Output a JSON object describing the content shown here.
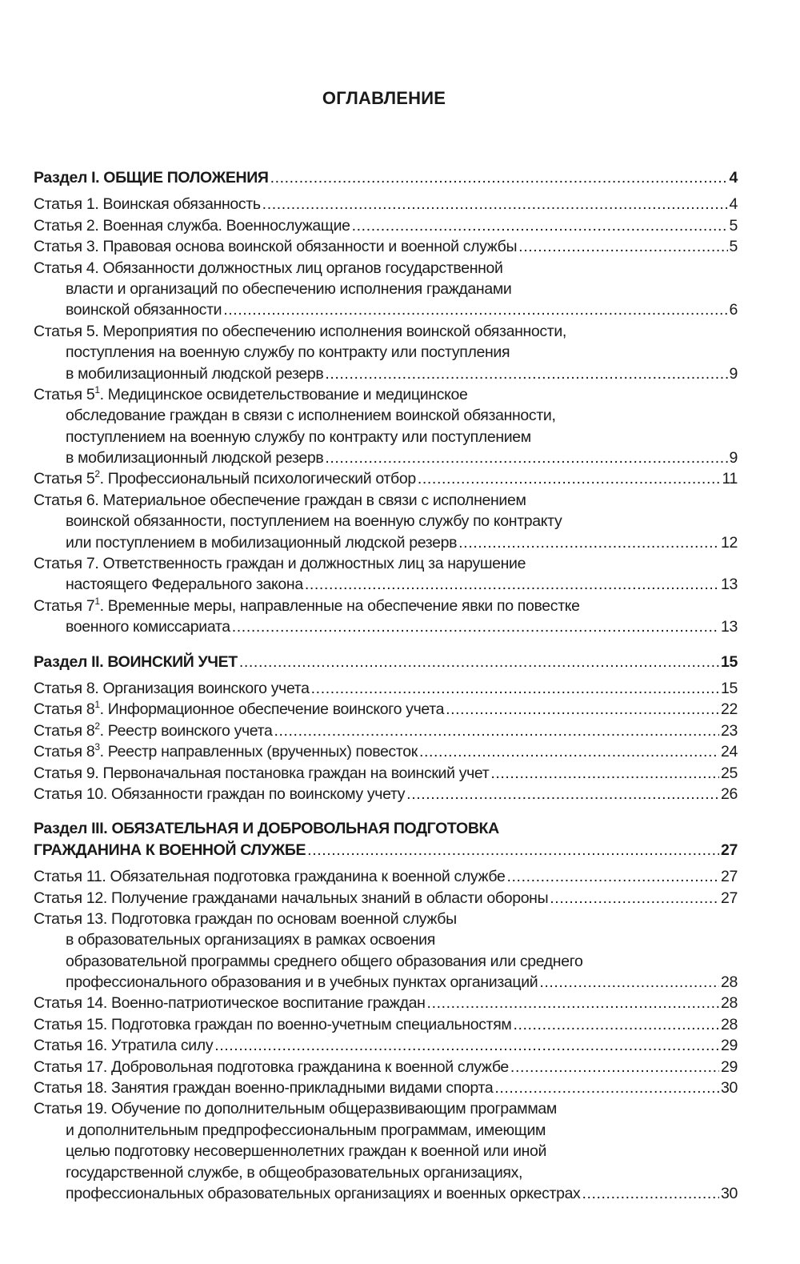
{
  "title": "ОГЛАВЛЕНИЕ",
  "entries": [
    {
      "type": "section",
      "prefix": "Раздел I. ОБЩИЕ ПОЛОЖЕНИЯ",
      "lines": [
        ""
      ],
      "page": "4"
    },
    {
      "prefix": "Статья 1",
      "lines": [
        ". Воинская обязанность"
      ],
      "page": "4"
    },
    {
      "prefix": "Статья 2",
      "lines": [
        ". Военная служба. Военнослужащие"
      ],
      "page": "5"
    },
    {
      "prefix": "Статья 3",
      "lines": [
        ". Правовая основа воинской обязанности и военной службы"
      ],
      "page": "5"
    },
    {
      "prefix": "Статья 4",
      "lines": [
        ". Обязанности должностных лиц органов государственной",
        "власти и организаций по обеспечению исполнения гражданами",
        "воинской обязанности"
      ],
      "page": "6"
    },
    {
      "prefix": "Статья 5",
      "lines": [
        ". Мероприятия по обеспечению исполнения воинской обязанности,",
        "поступления на военную службу по контракту или поступления",
        "в мобилизационный людской резерв"
      ],
      "page": "9"
    },
    {
      "prefix": "Статья 5",
      "sup": "1",
      "lines": [
        ". Медицинское освидетельствование и медицинское",
        "обследование граждан в связи с исполнением воинской обязанности,",
        "поступлением на военную службу по контракту или поступлением",
        "в мобилизационный людской резерв"
      ],
      "page": "9"
    },
    {
      "prefix": "Статья 5",
      "sup": "2",
      "lines": [
        ". Профессиональный психологический отбор"
      ],
      "page": "11"
    },
    {
      "prefix": "Статья 6",
      "lines": [
        ". Материальное обеспечение граждан в связи с исполнением",
        "воинской обязанности, поступлением на военную службу по контракту",
        "или поступлением в мобилизационный людской резерв"
      ],
      "page": "12"
    },
    {
      "prefix": "Статья 7",
      "lines": [
        ". Ответственность граждан и должностных лиц за нарушение",
        "настоящего Федерального закона"
      ],
      "page": "13"
    },
    {
      "prefix": "Статья 7",
      "sup": "1",
      "lines": [
        ". Временные меры, направленные на обеспечение явки по повестке",
        "военного комиссариата"
      ],
      "page": "13"
    },
    {
      "type": "section",
      "prefix": "Раздел II. ВОИНСКИЙ УЧЕТ",
      "lines": [
        ""
      ],
      "page": "15"
    },
    {
      "prefix": "Статья 8",
      "lines": [
        ". Организация воинского учета"
      ],
      "page": "15"
    },
    {
      "prefix": "Статья 8",
      "sup": "1",
      "lines": [
        ". Информационное обеспечение воинского учета"
      ],
      "page": "22"
    },
    {
      "prefix": "Статья 8",
      "sup": "2",
      "lines": [
        ". Реестр воинского учета"
      ],
      "page": "23"
    },
    {
      "prefix": "Статья 8",
      "sup": "3",
      "lines": [
        ". Реестр направленных (врученных) повесток"
      ],
      "page": "24"
    },
    {
      "prefix": "Статья 9",
      "lines": [
        ". Первоначальная постановка граждан на воинский учет"
      ],
      "page": "25"
    },
    {
      "prefix": "Статья 10",
      "lines": [
        ". Обязанности граждан по воинскому учету"
      ],
      "page": "26"
    },
    {
      "type": "section",
      "prefix": "Раздел III. ОБЯЗАТЕЛЬНАЯ И ДОБРОВОЛЬНАЯ ПОДГОТОВКА",
      "lines": [
        "",
        "ГРАЖДАНИНА К ВОЕННОЙ СЛУЖБЕ"
      ],
      "page": "27"
    },
    {
      "prefix": "Статья 11",
      "lines": [
        ". Обязательная подготовка гражданина к военной службе"
      ],
      "page": "27"
    },
    {
      "prefix": "Статья 12",
      "lines": [
        ". Получение гражданами начальных знаний в области обороны"
      ],
      "page": "27"
    },
    {
      "prefix": "Статья 13",
      "lines": [
        ". Подготовка граждан по основам военной службы",
        "в образовательных организациях в рамках освоения",
        "образовательной программы среднего общего образования или среднего",
        "профессионального образования и в учебных пунктах организаций"
      ],
      "page": "28"
    },
    {
      "prefix": "Статья 14",
      "lines": [
        ". Военно-патриотическое воспитание граждан"
      ],
      "page": "28"
    },
    {
      "prefix": "Статья 15",
      "lines": [
        ". Подготовка граждан по военно-учетным специальностям"
      ],
      "page": "28"
    },
    {
      "prefix": "Статья 16",
      "lines": [
        ". Утратила силу"
      ],
      "page": "29"
    },
    {
      "prefix": "Статья 17",
      "lines": [
        ". Добровольная подготовка гражданина к военной службе"
      ],
      "page": "29"
    },
    {
      "prefix": "Статья 18",
      "lines": [
        ". Занятия граждан военно-прикладными видами спорта"
      ],
      "page": "30"
    },
    {
      "prefix": "Статья 19",
      "lines": [
        ". Обучение по дополнительным общеразвивающим программам",
        "и дополнительным предпрофессиональным программам, имеющим",
        "целью подготовку несовершеннолетних граждан к военной или иной",
        "государственной службе, в общеобразовательных организациях,",
        "профессиональных образовательных организациях и военных оркестрах"
      ],
      "page": "30"
    }
  ]
}
